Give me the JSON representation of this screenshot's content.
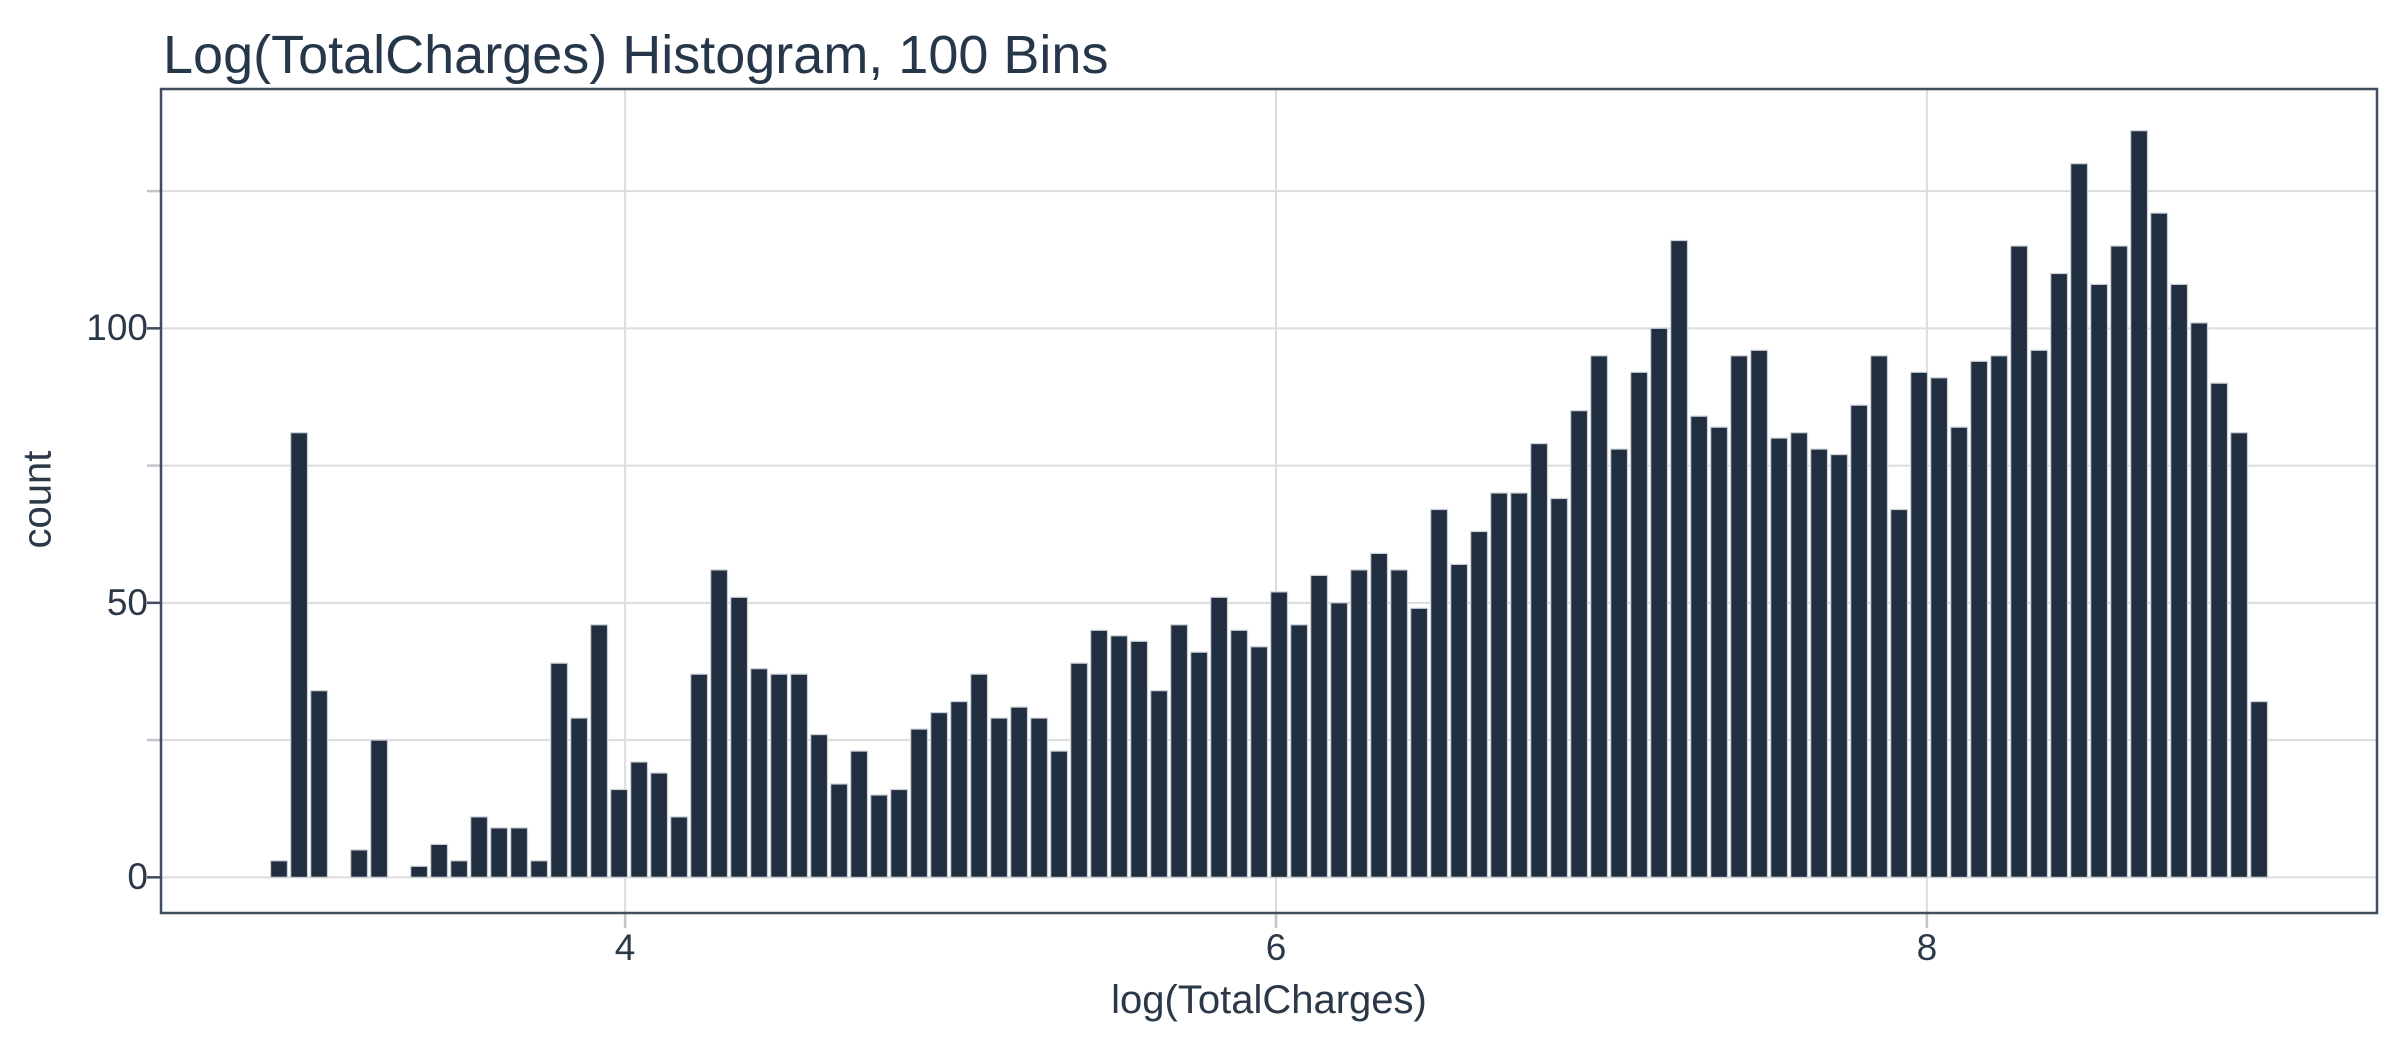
{
  "chart_data": {
    "type": "bar",
    "subtype": "histogram",
    "title": "Log(TotalCharges) Histogram, 100 Bins",
    "xlabel": "log(TotalCharges)",
    "ylabel": "count",
    "x_start": 2.906,
    "bin_width": 0.061455,
    "n_bins": 100,
    "counts": [
      3,
      81,
      34,
      0,
      5,
      25,
      0,
      2,
      6,
      3,
      11,
      9,
      9,
      3,
      39,
      29,
      46,
      16,
      21,
      19,
      11,
      37,
      56,
      51,
      38,
      37,
      37,
      26,
      17,
      23,
      15,
      16,
      27,
      30,
      32,
      37,
      29,
      31,
      29,
      23,
      39,
      45,
      44,
      43,
      34,
      46,
      41,
      51,
      45,
      42,
      52,
      46,
      55,
      50,
      56,
      59,
      56,
      49,
      67,
      57,
      63,
      70,
      70,
      79,
      69,
      85,
      95,
      78,
      92,
      100,
      116,
      84,
      82,
      95,
      96,
      80,
      81,
      78,
      77,
      86,
      95,
      67,
      92,
      91,
      82,
      94,
      95,
      115,
      96,
      110,
      130,
      108,
      115,
      136,
      121,
      108,
      101,
      90,
      81,
      32
    ],
    "x_ticks": [
      {
        "value": 4,
        "label": "4"
      },
      {
        "value": 6,
        "label": "6"
      },
      {
        "value": 8,
        "label": "8"
      }
    ],
    "y_ticks": [
      {
        "value": 0,
        "label": "0"
      },
      {
        "value": 50,
        "label": "50"
      },
      {
        "value": 100,
        "label": "100"
      }
    ],
    "y_minor_ticks": [
      25,
      75,
      125
    ],
    "xlim": [
      2.574,
      9.383
    ],
    "ylim": [
      -6.5,
      143.6
    ],
    "grid": true,
    "legend": "none",
    "colors": {
      "bar_fill": "#212e40",
      "bar_edge": "#c9d0d6",
      "gridline": "#dcdcdc",
      "panel_border": "#3f4d5c",
      "major_tick": "#3f4d5c",
      "minor_tick": "#bfc6cc",
      "text": "#2b3848",
      "background": "#ffffff"
    }
  }
}
